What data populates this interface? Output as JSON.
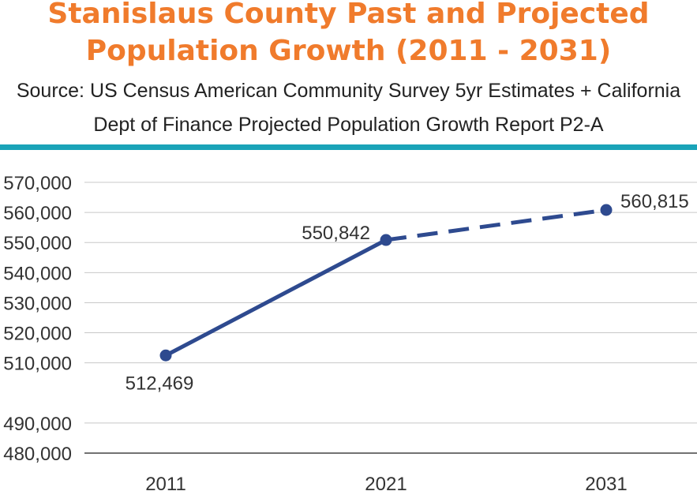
{
  "chart_data": {
    "type": "line",
    "title_line1": "Stanislaus County Past and Projected",
    "title_line2": "Population Growth (2011 - 2031)",
    "subtitle_line1": "Source: US Census American Community Survey 5yr Estimates + California",
    "subtitle_line2": "Dept of Finance Projected Population Growth Report P2-A",
    "categories": [
      "2011",
      "2021",
      "2031"
    ],
    "series": [
      {
        "values": [
          512469,
          550842,
          560815
        ],
        "data_labels": [
          "512,469",
          "550,842",
          "560,815"
        ]
      }
    ],
    "y_ticks": [
      480000,
      490000,
      510000,
      520000,
      530000,
      540000,
      550000,
      560000,
      570000
    ],
    "y_tick_labels": [
      "480,000",
      "490,000",
      "510,000",
      "520,000",
      "530,000",
      "540,000",
      "550,000",
      "560,000",
      "570,000"
    ],
    "ylim": [
      480000,
      570000
    ],
    "grid": true,
    "line_color": "#2e4a8f",
    "solid_segment": "2011-2021",
    "dashed_segment": "2021-2031"
  }
}
